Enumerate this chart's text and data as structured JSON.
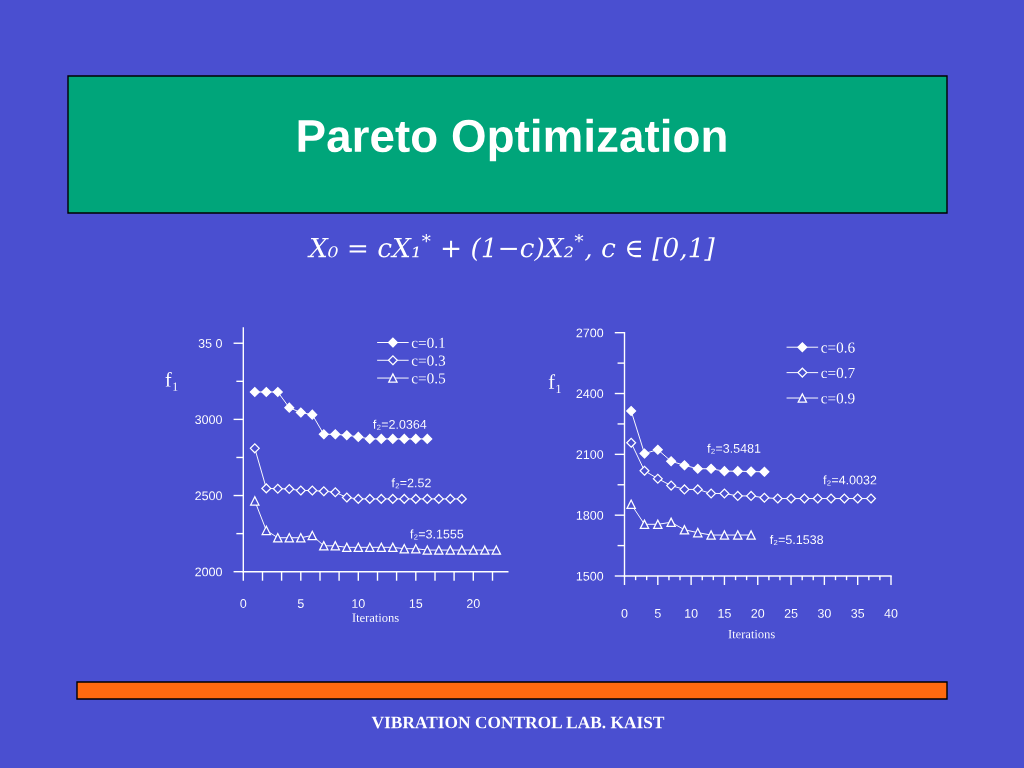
{
  "chart_data": [
    {
      "type": "line",
      "title": "Pareto Optimization",
      "subtitle": "X₀ = cX₁$^{*}$ + (1−c)X₂$^{*}$, c ∈ [0,1]",
      "xlabel": "Iterations",
      "ylabel": "f₁",
      "series": [
        {
          "name": "c=0.1",
          "color": "#ffffff",
          "marker": "diamond",
          "x": [
            1,
            2,
            3,
            4,
            5,
            6,
            7,
            8,
            9,
            10,
            11,
            12,
            13,
            14,
            15,
            16
          ],
          "values": [
            3180,
            3180,
            3180,
            3077,
            3045,
            3031,
            2902,
            2902,
            2896,
            2885,
            2872,
            2872,
            2872,
            2872,
            2872,
            2872
          ]
        },
        {
          "name": "c=0.3",
          "color": "#ffffff",
          "marker": "diamond",
          "x": [
            1,
            2,
            3,
            4,
            5,
            6,
            7,
            8,
            9,
            10,
            11,
            12,
            13,
            14,
            15,
            16,
            17,
            18,
            19
          ],
          "values": [
            2810,
            2547,
            2545,
            2543,
            2533,
            2533,
            2528,
            2522,
            2487,
            2478,
            2478,
            2478,
            2478,
            2478,
            2478,
            2478,
            2478,
            2478,
            2478
          ]
        },
        {
          "name": "c=0.5",
          "color": "#ffffff",
          "marker": "triangle",
          "x": [
            1,
            2,
            3,
            4,
            5,
            6,
            7,
            8,
            9,
            10,
            11,
            12,
            13,
            14,
            15,
            16,
            17,
            18,
            19,
            20,
            21,
            22
          ],
          "values": [
            2465,
            2271,
            2223,
            2223,
            2223,
            2238,
            2170,
            2170,
            2160,
            2160,
            2160,
            2160,
            2160,
            2151,
            2151,
            2142,
            2142,
            2142,
            2142,
            2142,
            2142,
            2142
          ]
        }
      ],
      "xlim": [
        0,
        23
      ],
      "ylim": [
        2000,
        3600
      ],
      "xticks": [
        0,
        {
          "value": 1.67,
          "label": null
        },
        {
          "value": 3.33,
          "label": null
        },
        5,
        {
          "value": 6.67,
          "label": null
        },
        {
          "value": 8.33,
          "label": null
        },
        10,
        {
          "value": 11.67,
          "label": null
        },
        {
          "value": 13.33,
          "label": null
        },
        15,
        {
          "value": 16.67,
          "label": null
        },
        {
          "value": 18.33,
          "label": null
        },
        20,
        {
          "value": 21.67,
          "label": null
        }
      ],
      "yticks": [
        2000,
        {
          "value": 2250,
          "label": null
        },
        2500,
        {
          "value": 2750,
          "label": null
        },
        3000,
        {
          "value": 3250,
          "label": null
        },
        {
          "value": 3500,
          "label": "35 0"
        }
      ],
      "legend": "top right",
      "grid": false,
      "annotations": [
        "f₂=2.0364",
        "f₂=2.52",
        "f₂=3.1555"
      ]
    },
    {
      "type": "line",
      "xlabel": "Iterations",
      "ylabel": "f₁",
      "series": [
        {
          "name": "c=0.6",
          "color": "#ffffff",
          "marker": "diamond",
          "x": [
            1,
            3,
            5,
            7,
            9,
            11,
            13,
            15,
            17,
            19,
            21
          ],
          "values": [
            2314,
            2104,
            2123,
            2066,
            2046,
            2029,
            2029,
            2017,
            2017,
            2015,
            2014
          ]
        },
        {
          "name": "c=0.7",
          "color": "#ffffff",
          "marker": "diamond",
          "x": [
            1,
            3,
            5,
            7,
            9,
            11,
            13,
            15,
            17,
            19,
            21,
            23,
            25,
            27,
            29,
            31,
            33,
            35,
            37
          ],
          "values": [
            2157,
            2019,
            1980,
            1946,
            1927,
            1927,
            1907,
            1907,
            1895,
            1895,
            1886,
            1882,
            1882,
            1882,
            1882,
            1882,
            1882,
            1882,
            1882
          ]
        },
        {
          "name": "c=0.9",
          "color": "#ffffff",
          "marker": "triangle",
          "x": [
            1,
            3,
            5,
            7,
            9,
            11,
            13,
            15,
            17,
            19
          ],
          "values": [
            1854,
            1755,
            1755,
            1765,
            1728,
            1714,
            1702,
            1702,
            1702,
            1702
          ]
        }
      ],
      "xlim": [
        0,
        40
      ],
      "ylim": [
        1500,
        2700
      ],
      "xticks": [
        0,
        {
          "value": 1.67,
          "label": null
        },
        {
          "value": 3.33,
          "label": null
        },
        5,
        {
          "value": 6.67,
          "label": null
        },
        {
          "value": 8.33,
          "label": null
        },
        10,
        {
          "value": 11.67,
          "label": null
        },
        {
          "value": 13.33,
          "label": null
        },
        15,
        {
          "value": 16.67,
          "label": null
        },
        {
          "value": 18.33,
          "label": null
        },
        20,
        {
          "value": 21.67,
          "label": null
        },
        {
          "value": 23.33,
          "label": null
        },
        25,
        {
          "value": 26.67,
          "label": null
        },
        {
          "value": 28.33,
          "label": null
        },
        30,
        {
          "value": 31.67,
          "label": null
        },
        {
          "value": 33.33,
          "label": null
        },
        35,
        {
          "value": 36.67,
          "label": null
        },
        {
          "value": 38.33,
          "label": null
        },
        40
      ],
      "yticks": [
        1500,
        {
          "value": 1650,
          "label": null
        },
        1800,
        {
          "value": 1950,
          "label": null
        },
        2100,
        {
          "value": 2250,
          "label": null
        },
        2400,
        {
          "value": 2550,
          "label": null
        },
        2700
      ],
      "legend": "top right",
      "grid": false,
      "annotations": [
        "f₂=3.5481",
        "f₂=4.0032",
        "f₂=5.1538",
        "VIBRATION CONTROL LAB. KAIST"
      ]
    }
  ]
}
